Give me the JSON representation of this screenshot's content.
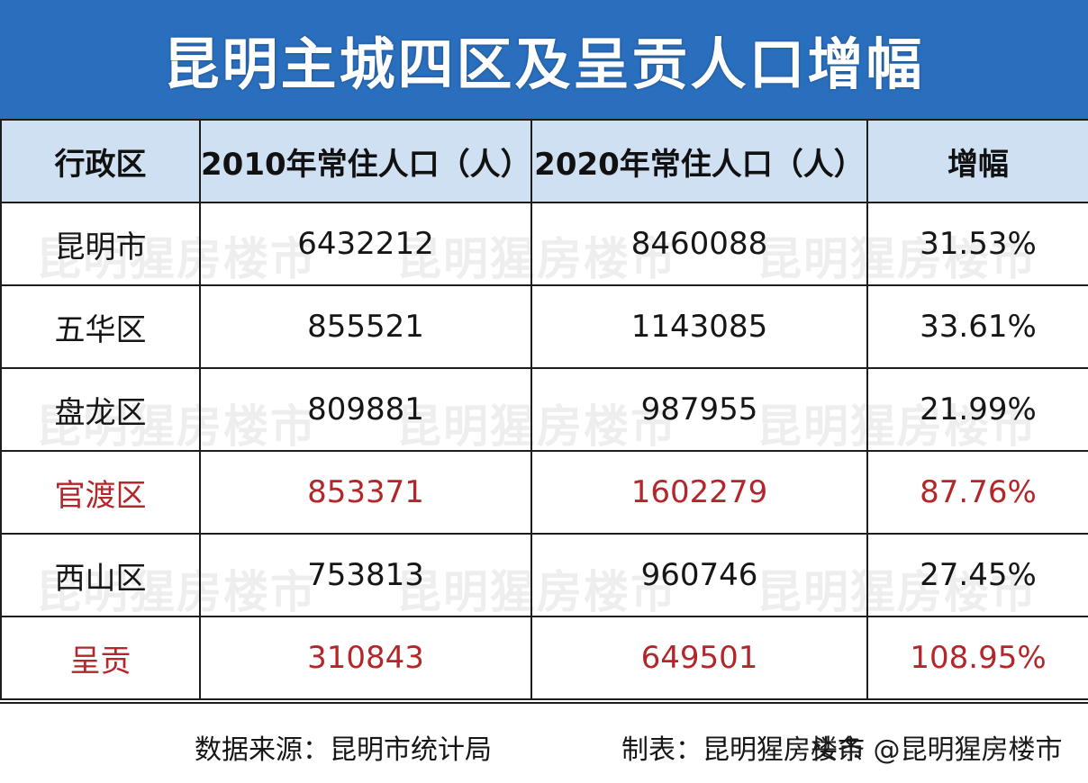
{
  "title": "昆明主城四区及呈贡人口增幅",
  "headers": [
    "行政区",
    "2010年常住人口（人）",
    "2020年常住人口（人）",
    "增幅"
  ],
  "rows": [
    {
      "district": "昆明市",
      "pop2010": "6432212",
      "pop2020": "8460088",
      "growth": "31.53%"
    },
    {
      "district": "五华区",
      "pop2010": "855521",
      "pop2020": "1143085",
      "growth": "33.61%"
    },
    {
      "district": "盘龙区",
      "pop2010": "809881",
      "pop2020": "987955",
      "growth": "21.99%"
    },
    {
      "district": "官渡区",
      "pop2010": "853371",
      "pop2020": "1602279",
      "growth": "87.76%"
    },
    {
      "district": "西山区",
      "pop2010": "753813",
      "pop2020": "960746",
      "growth": "27.45%"
    },
    {
      "district": "呈贡",
      "pop2010": "310843",
      "pop2020": "649501",
      "growth": "108.95%"
    }
  ],
  "footer": {
    "source": "数据来源：昆明市统计局",
    "maker": "制表：昆明猩房楼市",
    "credit": "头条 @昆明猩房楼市"
  },
  "watermark": "昆明猩房楼市",
  "colors": {
    "title_bg": "#2a6fbe",
    "header_bg": "#cfe0f3",
    "highlight_text": "#b3262a"
  },
  "chart_data": {
    "type": "table",
    "title": "昆明主城四区及呈贡人口增幅",
    "columns": [
      "行政区",
      "2010年常住人口（人）",
      "2020年常住人口（人）",
      "增幅"
    ],
    "highlighted_rows": [
      "官渡区",
      "呈贡"
    ],
    "rows": [
      [
        "昆明市",
        6432212,
        8460088,
        31.53
      ],
      [
        "五华区",
        855521,
        1143085,
        33.61
      ],
      [
        "盘龙区",
        809881,
        987955,
        21.99
      ],
      [
        "官渡区",
        853371,
        1602279,
        87.76
      ],
      [
        "西山区",
        753813,
        960746,
        27.45
      ],
      [
        "呈贡",
        310843,
        649501,
        108.95
      ]
    ]
  }
}
